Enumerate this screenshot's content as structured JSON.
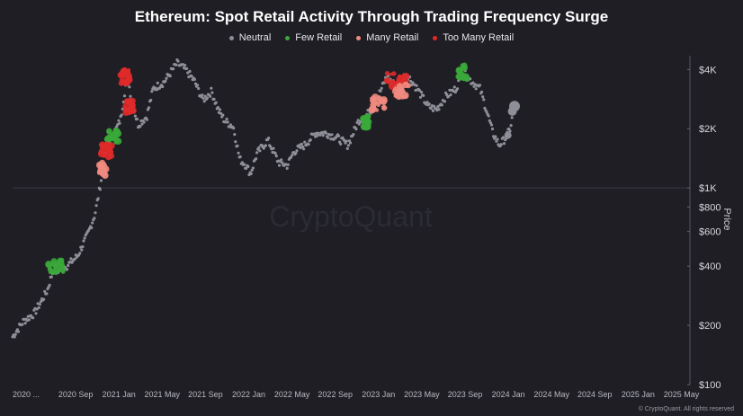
{
  "chart_data": {
    "type": "scatter",
    "title": "Ethereum: Spot Retail Activity Through Trading Frequency Surge",
    "ylabel": "Price",
    "y_scale": "log",
    "ylim": [
      100,
      4700
    ],
    "y_ticks": [
      {
        "value": 4000,
        "label": "$4K"
      },
      {
        "value": 2000,
        "label": "$2K"
      },
      {
        "value": 1000,
        "label": "$1K"
      },
      {
        "value": 800,
        "label": "$800"
      },
      {
        "value": 600,
        "label": "$600"
      },
      {
        "value": 400,
        "label": "$400"
      },
      {
        "value": 200,
        "label": "$200"
      },
      {
        "value": 100,
        "label": "$100"
      }
    ],
    "x_ticks": [
      "2020 ...",
      "2020 Sep",
      "2021 Jan",
      "2021 May",
      "2021 Sep",
      "2022 Jan",
      "2022 May",
      "2022 Sep",
      "2023 Jan",
      "2023 May",
      "2023 Sep",
      "2024 Jan",
      "2024 May",
      "2024 Sep",
      "2025 Jan",
      "2025 May"
    ],
    "legend_position": "top-center",
    "grid": false,
    "watermark": "CryptoQuant",
    "series": [
      {
        "name": "Neutral",
        "color": "#8e8e98"
      },
      {
        "name": "Few Retail",
        "color": "#3aa83a"
      },
      {
        "name": "Many Retail",
        "color": "#f08a80"
      },
      {
        "name": "Too Many Retail",
        "color": "#e02a2a"
      }
    ],
    "price_path": [
      [
        0,
        175
      ],
      [
        0.5,
        210
      ],
      [
        1,
        230
      ],
      [
        1.6,
        300
      ],
      [
        1.9,
        390
      ],
      [
        2.1,
        380
      ],
      [
        2.5,
        400
      ],
      [
        3,
        450
      ],
      [
        3.5,
        590
      ],
      [
        3.8,
        730
      ],
      [
        4.0,
        950
      ],
      [
        4.2,
        1300
      ],
      [
        4.4,
        1700
      ],
      [
        4.6,
        1800
      ],
      [
        4.8,
        2000
      ],
      [
        5.0,
        2250
      ],
      [
        5.1,
        2700
      ],
      [
        5.3,
        3800
      ],
      [
        5.5,
        2800
      ],
      [
        5.8,
        2100
      ],
      [
        6.2,
        2300
      ],
      [
        6.5,
        3200
      ],
      [
        7,
        3450
      ],
      [
        7.6,
        4300
      ],
      [
        8.0,
        4000
      ],
      [
        8.4,
        3500
      ],
      [
        8.8,
        2800
      ],
      [
        9.2,
        3100
      ],
      [
        9.5,
        2500
      ],
      [
        9.8,
        2200
      ],
      [
        10.2,
        2050
      ],
      [
        10.5,
        1400
      ],
      [
        10.8,
        1300
      ],
      [
        11.0,
        1180
      ],
      [
        11.3,
        1500
      ],
      [
        11.8,
        1750
      ],
      [
        12.3,
        1350
      ],
      [
        12.7,
        1300
      ],
      [
        13.0,
        1530
      ],
      [
        13.5,
        1650
      ],
      [
        14,
        1900
      ],
      [
        14.5,
        1900
      ],
      [
        15,
        1800
      ],
      [
        15.5,
        1650
      ],
      [
        16,
        2200
      ],
      [
        16.3,
        2300
      ],
      [
        16.7,
        2600
      ],
      [
        17.0,
        3100
      ],
      [
        17.3,
        3700
      ],
      [
        17.7,
        3300
      ],
      [
        18.2,
        3800
      ],
      [
        18.7,
        3200
      ],
      [
        19.2,
        2600
      ],
      [
        19.6,
        2500
      ],
      [
        20.0,
        2900
      ],
      [
        20.5,
        3200
      ],
      [
        20.8,
        3900
      ],
      [
        21.2,
        3500
      ],
      [
        21.6,
        3200
      ],
      [
        21.9,
        2500
      ],
      [
        22.2,
        1900
      ],
      [
        22.5,
        1650
      ],
      [
        22.8,
        1800
      ],
      [
        23.0,
        2000
      ],
      [
        23.2,
        2600
      ]
    ],
    "highlight_clusters": [
      {
        "series": "Few Retail",
        "x_range": [
          1.6,
          2.4
        ],
        "value": 400
      },
      {
        "series": "Few Retail",
        "x_range": [
          4.4,
          4.9
        ],
        "value": 1850
      },
      {
        "series": "Many Retail",
        "x_range": [
          4.0,
          4.3
        ],
        "value": 1250
      },
      {
        "series": "Too Many Retail",
        "x_range": [
          4.1,
          4.6
        ],
        "value": 1550
      },
      {
        "series": "Too Many Retail",
        "x_range": [
          5.0,
          5.4
        ],
        "value": 3700
      },
      {
        "series": "Too Many Retail",
        "x_range": [
          5.2,
          5.6
        ],
        "value": 2600
      },
      {
        "series": "Few Retail",
        "x_range": [
          16.2,
          16.5
        ],
        "value": 2150
      },
      {
        "series": "Many Retail",
        "x_range": [
          16.6,
          17.2
        ],
        "value": 2700
      },
      {
        "series": "Too Many Retail",
        "x_range": [
          17.3,
          18.2
        ],
        "value": 3550
      },
      {
        "series": "Many Retail",
        "x_range": [
          17.6,
          18.3
        ],
        "value": 3100
      },
      {
        "series": "Few Retail",
        "x_range": [
          20.6,
          21.0
        ],
        "value": 3900
      }
    ]
  },
  "copyright": "© CryptoQuant. All rights reserved"
}
